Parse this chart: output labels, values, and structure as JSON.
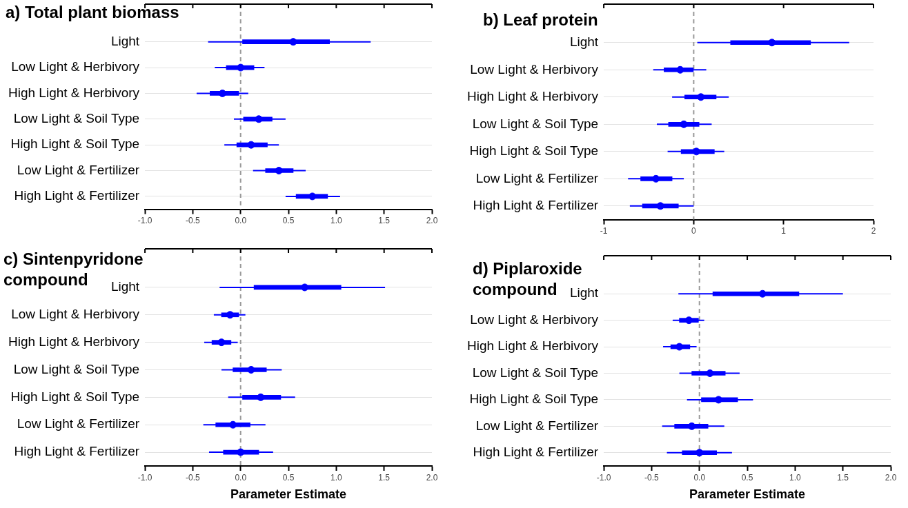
{
  "chart_data": [
    {
      "type": "scatter",
      "title": "a) Total plant biomass",
      "orientation": "horizontal",
      "categories": [
        "Light",
        "Low Light & Herbivory",
        "High Light & Herbivory",
        "Low Light & Soil Type",
        "High Light & Soil Type",
        "Low Light & Fertilizer",
        "High Light & Fertilizer"
      ],
      "series": [
        {
          "type": "bar",
          "color": "#0000ff",
          "base": [
            0.02,
            -0.15,
            -0.32,
            0.03,
            -0.04,
            0.26,
            0.58
          ],
          "values": [
            0.91,
            0.29,
            0.3,
            0.3,
            0.32,
            0.29,
            0.33
          ]
        },
        {
          "color": "#0000ff",
          "values": [
            0.55,
            0.0,
            -0.19,
            0.19,
            0.11,
            0.4,
            0.75
          ],
          "errors": [
            [
              -0.34,
              1.36
            ],
            [
              -0.27,
              0.25
            ],
            [
              -0.46,
              0.08
            ],
            [
              -0.07,
              0.47
            ],
            [
              -0.17,
              0.4
            ],
            [
              0.13,
              0.68
            ],
            [
              0.47,
              1.04
            ]
          ]
        }
      ],
      "xlim": [
        -1,
        2
      ],
      "xticks": [
        {
          "value": -1,
          "label": "-1.0"
        },
        {
          "value": -0.5,
          "label": "-0.5"
        },
        {
          "value": 0,
          "label": "0.0"
        },
        {
          "value": 0.5,
          "label": "0.5"
        },
        {
          "value": 1,
          "label": "1.0"
        },
        {
          "value": 1.5,
          "label": "1.5"
        },
        {
          "value": 2,
          "label": "2.0"
        }
      ],
      "ref_lines": [
        {
          "axis": "x",
          "value": 0,
          "color": "#999999",
          "line_style": "dashed"
        }
      ],
      "grid": "y",
      "legend": false,
      "marker": "circle"
    },
    {
      "type": "scatter",
      "title": "b) Leaf protein",
      "orientation": "horizontal",
      "categories": [
        "Light",
        "Low Light & Herbivory",
        "High Light & Herbivory",
        "Low Light & Soil Type",
        "High Light & Soil Type",
        "Low Light & Fertilizer",
        "High Light & Fertilizer"
      ],
      "series": [
        {
          "type": "bar",
          "color": "#0000ff",
          "base": [
            0.41,
            -0.33,
            -0.1,
            -0.28,
            -0.14,
            -0.59,
            -0.57
          ],
          "values": [
            0.89,
            0.33,
            0.35,
            0.34,
            0.37,
            0.35,
            0.4
          ]
        },
        {
          "color": "#0000ff",
          "values": [
            0.87,
            -0.15,
            0.08,
            -0.11,
            0.03,
            -0.42,
            -0.37
          ],
          "errors": [
            [
              0.04,
              1.73
            ],
            [
              -0.45,
              0.14
            ],
            [
              -0.24,
              0.39
            ],
            [
              -0.41,
              0.2
            ],
            [
              -0.29,
              0.34
            ],
            [
              -0.73,
              -0.11
            ],
            [
              -0.71,
              0.0
            ]
          ]
        }
      ],
      "xlim": [
        -1,
        2
      ],
      "xticks": [
        -1,
        0,
        1,
        2
      ],
      "ref_lines": [
        {
          "axis": "x",
          "value": 0,
          "color": "#999999",
          "line_style": "dashed"
        }
      ],
      "grid": "y",
      "legend": false,
      "marker": "circle"
    },
    {
      "type": "scatter",
      "title": "c) Sintenpyridone compound",
      "xlabel": "Parameter Estimate",
      "orientation": "horizontal",
      "categories": [
        "Light",
        "Low Light & Herbivory",
        "High Light & Herbivory",
        "Low Light & Soil Type",
        "High Light & Soil Type",
        "Low Light & Fertilizer",
        "High Light & Fertilizer"
      ],
      "series": [
        {
          "type": "bar",
          "color": "#0000ff",
          "base": [
            0.14,
            -0.2,
            -0.3,
            -0.08,
            0.02,
            -0.26,
            -0.18
          ],
          "values": [
            0.91,
            0.18,
            0.2,
            0.35,
            0.4,
            0.36,
            0.37
          ]
        },
        {
          "color": "#0000ff",
          "values": [
            0.67,
            -0.11,
            -0.2,
            0.11,
            0.21,
            -0.08,
            0.0
          ],
          "errors": [
            [
              -0.22,
              1.51
            ],
            [
              -0.28,
              0.05
            ],
            [
              -0.38,
              -0.03
            ],
            [
              -0.2,
              0.43
            ],
            [
              -0.13,
              0.57
            ],
            [
              -0.39,
              0.26
            ],
            [
              -0.33,
              0.34
            ]
          ]
        }
      ],
      "xlim": [
        -1,
        2
      ],
      "xticks": [
        {
          "value": -1,
          "label": "-1.0"
        },
        {
          "value": -0.5,
          "label": "-0.5"
        },
        {
          "value": 0,
          "label": "0.0"
        },
        {
          "value": 0.5,
          "label": "0.5"
        },
        {
          "value": 1,
          "label": "1.0"
        },
        {
          "value": 1.5,
          "label": "1.5"
        },
        {
          "value": 2,
          "label": "2.0"
        }
      ],
      "ref_lines": [
        {
          "axis": "x",
          "value": 0,
          "color": "#999999",
          "line_style": "dashed"
        }
      ],
      "grid": "y",
      "legend": false,
      "marker": "circle"
    },
    {
      "type": "scatter",
      "title": "d) Piplaroxide compound",
      "xlabel": "Parameter Estimate",
      "orientation": "horizontal",
      "categories": [
        "Light",
        "Low Light & Herbivory",
        "High Light & Herbivory",
        "Low Light & Soil Type",
        "High Light & Soil Type",
        "Low Light & Fertilizer",
        "High Light & Fertilizer"
      ],
      "series": [
        {
          "type": "bar",
          "color": "#0000ff",
          "base": [
            0.14,
            -0.21,
            -0.3,
            -0.08,
            0.02,
            -0.26,
            -0.18
          ],
          "values": [
            0.9,
            0.2,
            0.2,
            0.35,
            0.38,
            0.35,
            0.36
          ]
        },
        {
          "color": "#0000ff",
          "values": [
            0.66,
            -0.11,
            -0.21,
            0.11,
            0.2,
            -0.08,
            0.0
          ],
          "errors": [
            [
              -0.22,
              1.5
            ],
            [
              -0.28,
              0.05
            ],
            [
              -0.38,
              -0.03
            ],
            [
              -0.21,
              0.42
            ],
            [
              -0.13,
              0.56
            ],
            [
              -0.39,
              0.26
            ],
            [
              -0.34,
              0.34
            ]
          ]
        }
      ],
      "xlim": [
        -1,
        2
      ],
      "xticks": [
        {
          "value": -1,
          "label": "-1.0"
        },
        {
          "value": -0.5,
          "label": "-0.5"
        },
        {
          "value": 0,
          "label": "0.0"
        },
        {
          "value": 0.5,
          "label": "0.5"
        },
        {
          "value": 1,
          "label": "1.0"
        },
        {
          "value": 1.5,
          "label": "1.5"
        },
        {
          "value": 2,
          "label": "2.0"
        }
      ],
      "ref_lines": [
        {
          "axis": "x",
          "value": 0,
          "color": "#999999",
          "line_style": "dashed"
        }
      ],
      "grid": "y",
      "legend": false,
      "marker": "circle"
    }
  ]
}
